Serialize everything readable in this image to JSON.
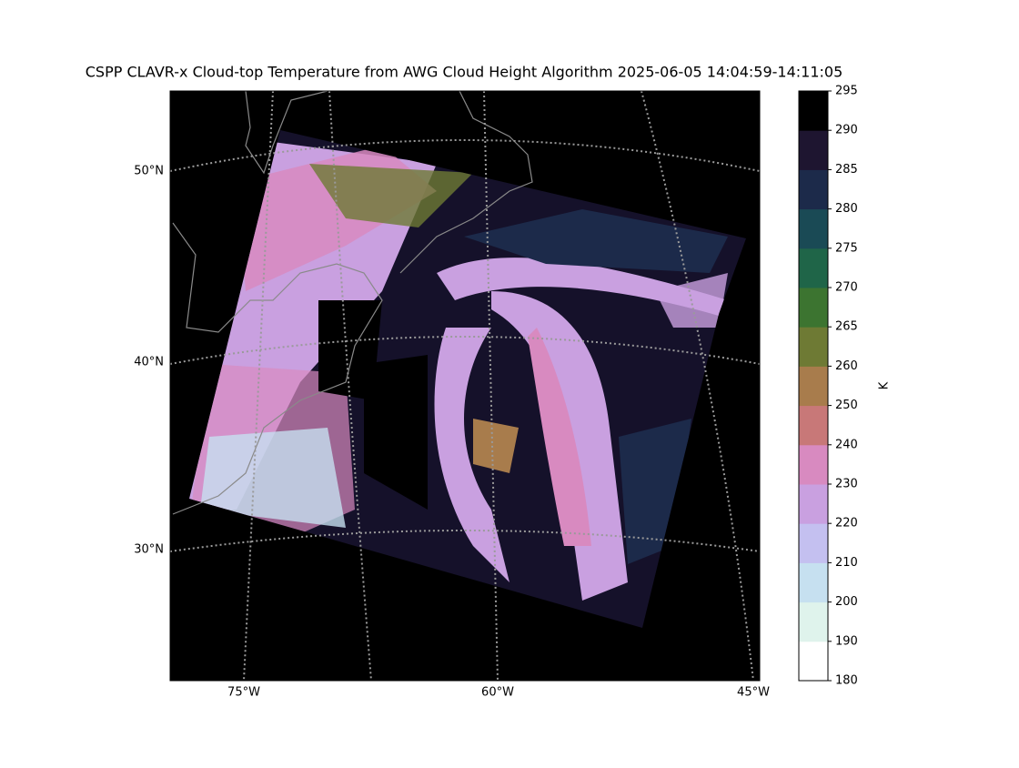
{
  "title": "CSPP CLAVR-x Cloud-top Temperature from AWG Cloud Height Algorithm 2025-06-05 14:04:59-14:11:05",
  "map": {
    "lat_labels": [
      "50°N",
      "40°N",
      "30°N"
    ],
    "lon_labels": [
      "75°W",
      "60°W",
      "45°W"
    ]
  },
  "colorbar": {
    "label": "K",
    "ticks": [
      180,
      190,
      200,
      210,
      220,
      230,
      240,
      250,
      260,
      265,
      270,
      275,
      280,
      285,
      290,
      295
    ],
    "colors": [
      "#ffffff",
      "#dff3ec",
      "#c6e0f0",
      "#c4c0f0",
      "#c9a0e0",
      "#d88ac0",
      "#c87878",
      "#a87c4c",
      "#6e7a34",
      "#3c7430",
      "#1f6548",
      "#1a4a55",
      "#1c2a4a",
      "#1e1530",
      "#000000"
    ]
  }
}
